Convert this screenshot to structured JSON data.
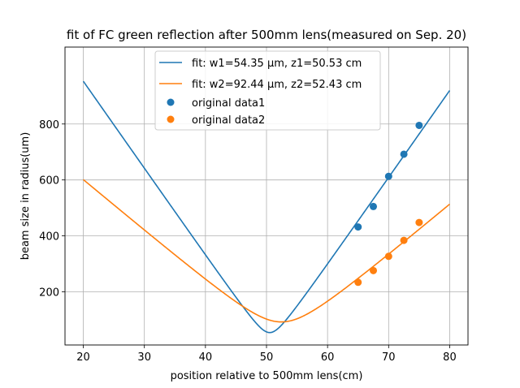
{
  "chart_data": {
    "type": "line",
    "title": "fit of FC green reflection after 500mm lens(measured on Sep. 20)",
    "xlabel": "position relative to 500mm lens(cm)",
    "ylabel": "beam size in radius(um)",
    "xlim": [
      17,
      83
    ],
    "ylim": [
      10,
      1075
    ],
    "xticks": [
      20,
      30,
      40,
      50,
      60,
      70,
      80
    ],
    "yticks": [
      200,
      400,
      600,
      800
    ],
    "grid": true,
    "legend_position": "top-center",
    "fits": [
      {
        "name": "fit: w1=54.35 μm, z1=50.53 cm",
        "w0": 54.35,
        "z0": 50.53,
        "x_range": [
          20,
          80
        ],
        "color": "#1f77b4"
      },
      {
        "name": "fit: w2=92.44 μm, z2=52.43 cm",
        "w0": 92.44,
        "z0": 52.43,
        "x_range": [
          20,
          80
        ],
        "color": "#ff7f0e"
      }
    ],
    "scatter": [
      {
        "name": "original data1",
        "color": "#1f77b4",
        "x": [
          65,
          67.5,
          70,
          72.5,
          75
        ],
        "y": [
          432,
          505,
          613,
          692,
          795
        ]
      },
      {
        "name": "original data2",
        "color": "#ff7f0e",
        "x": [
          65,
          67.5,
          70,
          72.5,
          75
        ],
        "y": [
          234,
          276,
          327,
          384,
          448
        ]
      }
    ]
  }
}
